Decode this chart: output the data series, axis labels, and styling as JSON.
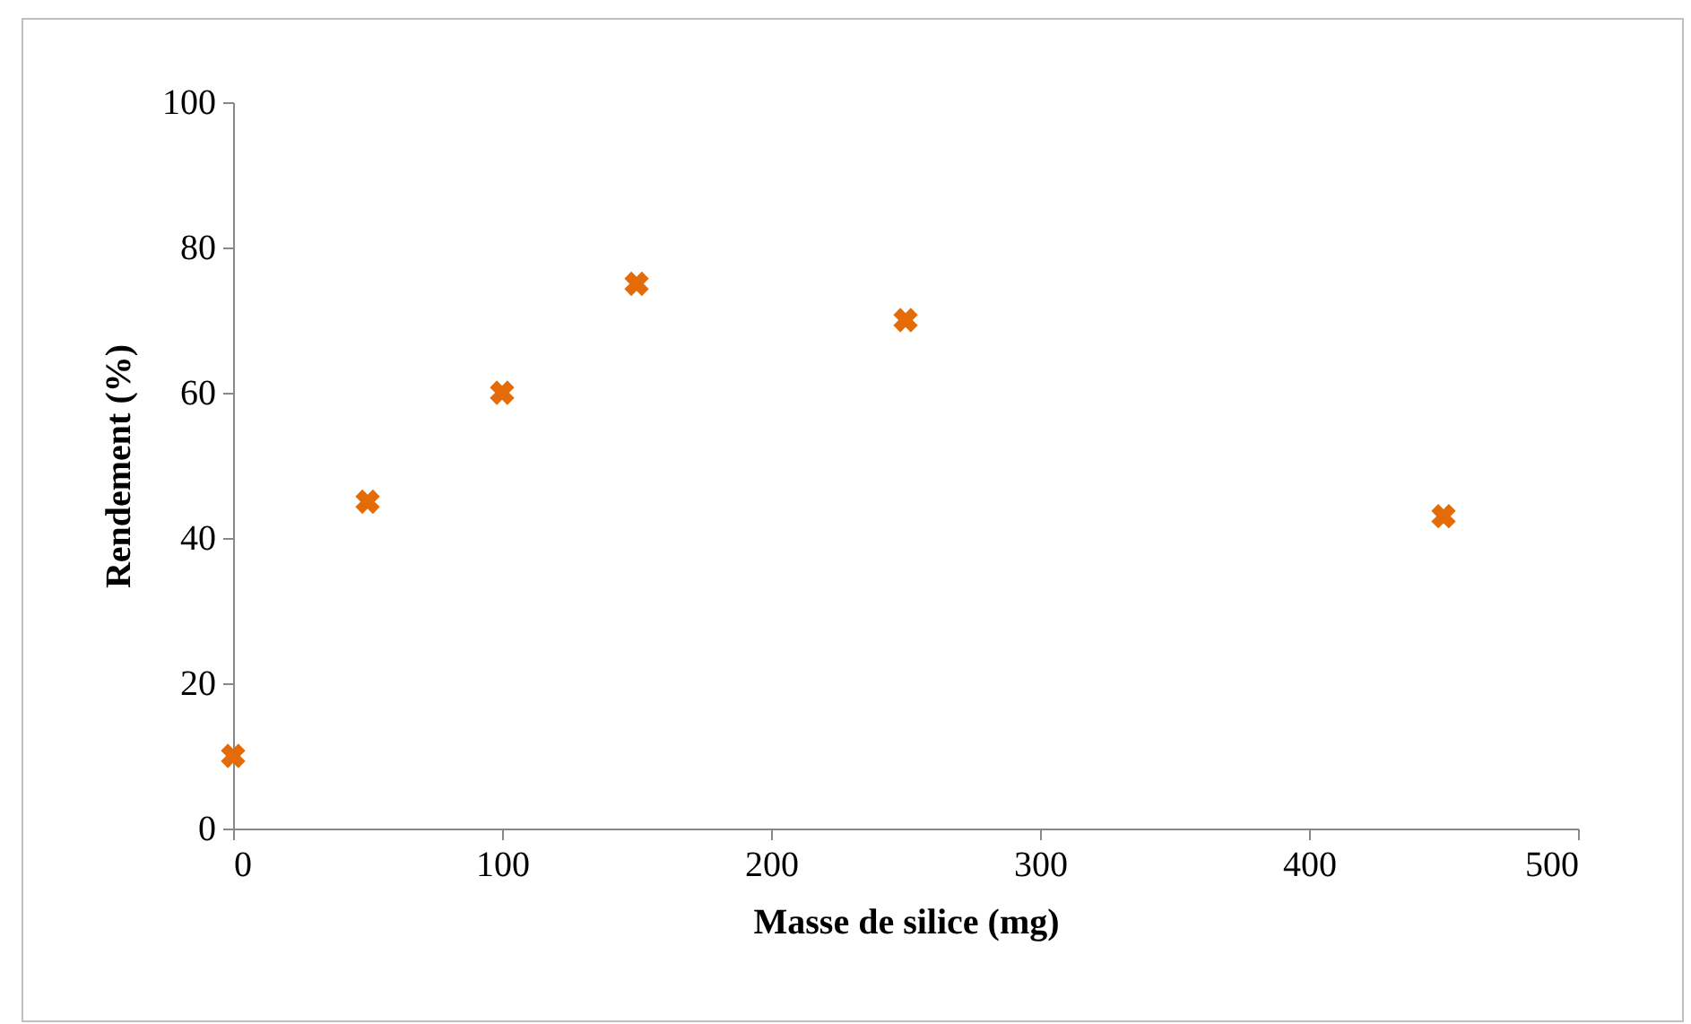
{
  "chart_data": {
    "type": "scatter",
    "xlabel": "Masse de silice (mg)",
    "ylabel": "Rendement (%)",
    "x": [
      0,
      50,
      100,
      150,
      250,
      450
    ],
    "series": [
      {
        "color": "#e36c09",
        "values": [
          10,
          45,
          60,
          75,
          70,
          43
        ]
      }
    ],
    "xlim": [
      0,
      500
    ],
    "xticks": [
      0,
      100,
      200,
      300,
      400,
      500
    ],
    "ylim": [
      0,
      100
    ],
    "yticks": [
      0,
      20,
      40,
      60,
      80,
      100
    ],
    "grid": false,
    "legend": false,
    "marker": "cross"
  }
}
